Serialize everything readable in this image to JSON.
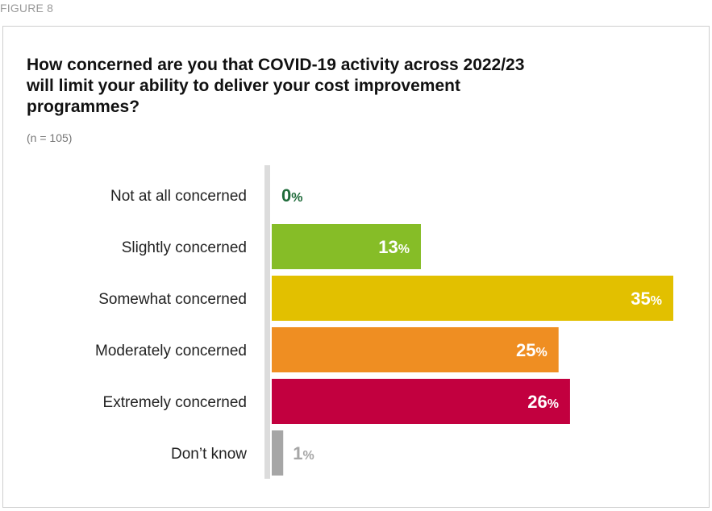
{
  "figure_label": "FIGURE 8",
  "chart_data": {
    "type": "bar",
    "orientation": "horizontal",
    "title": "How concerned are you that COVID-19 activity across 2022/23 will limit your ability to deliver your cost improvement programmes?",
    "subtitle": "(n = 105)",
    "categories": [
      "Not at all concerned",
      "Slightly concerned",
      "Somewhat concerned",
      "Moderately concerned",
      "Extremely concerned",
      "Don’t know"
    ],
    "values": [
      0,
      13,
      35,
      25,
      26,
      1
    ],
    "value_labels": [
      "0",
      "13",
      "35",
      "25",
      "26",
      "1"
    ],
    "unit": "%",
    "colors": [
      "#1f6b3a",
      "#86bd27",
      "#e2c000",
      "#ef8e22",
      "#c2003f",
      "#a6a6a6"
    ],
    "label_colors": [
      "#1f6b3a",
      "#ffffff",
      "#ffffff",
      "#ffffff",
      "#ffffff",
      "#a6a6a6"
    ],
    "xlim": [
      0,
      35
    ],
    "grid": false,
    "legend": "none"
  }
}
